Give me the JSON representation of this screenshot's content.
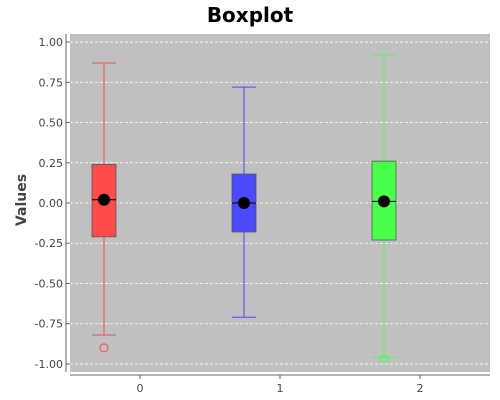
{
  "chart_data": {
    "type": "boxplot",
    "title": "Boxplot",
    "xlabel": "",
    "ylabel": "Values",
    "ylim": [
      -1.05,
      1.05
    ],
    "yticks": [
      "1.00",
      "0.75",
      "0.50",
      "0.25",
      "0.00",
      "-0.25",
      "-0.50",
      "-0.75",
      "-1.00"
    ],
    "categories": [
      "0",
      "1",
      "2"
    ],
    "grid": true,
    "legend": "none",
    "colors": {
      "plot_background": "#c0c0c0",
      "grid": "#ffffff",
      "mean_marker": "#000000",
      "median_line": "#000000"
    },
    "series": [
      {
        "category": "0",
        "color": "#ff4a4a",
        "whisker_low": -0.82,
        "q1": -0.21,
        "median": 0.02,
        "mean": 0.02,
        "q3": 0.24,
        "whisker_high": 0.87,
        "outliers": [
          -0.9
        ]
      },
      {
        "category": "1",
        "color": "#4a4aff",
        "whisker_low": -0.71,
        "q1": -0.18,
        "median": 0.0,
        "mean": 0.0,
        "q3": 0.18,
        "whisker_high": 0.72,
        "outliers": []
      },
      {
        "category": "2",
        "color": "#4aff4a",
        "whisker_low": -0.96,
        "q1": -0.23,
        "median": 0.01,
        "mean": 0.01,
        "q3": 0.26,
        "whisker_high": 0.92,
        "outliers": [
          -0.97
        ]
      }
    ]
  }
}
